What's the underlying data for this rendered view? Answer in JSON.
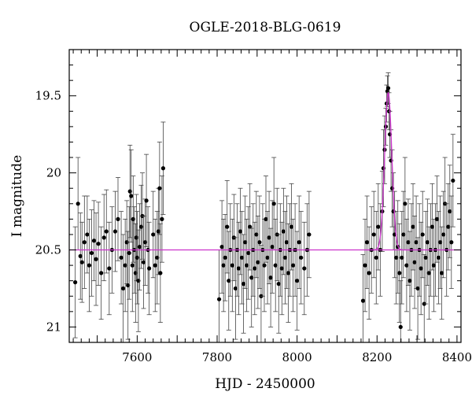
{
  "chart_data": {
    "type": "scatter",
    "title": "OGLE-2018-BLG-0619",
    "xlabel": "HJD - 2450000",
    "ylabel": "I magnitude",
    "xlim": [
      7430,
      8410
    ],
    "ylim": [
      21.1,
      19.2
    ],
    "y_inverted": true,
    "xticks": [
      7600,
      7800,
      8000,
      8200,
      8400
    ],
    "xtick_labels": [
      "7600",
      "7800",
      "8000",
      "8200",
      "8400"
    ],
    "yticks": [
      19.5,
      20,
      20.5,
      21
    ],
    "ytick_labels": [
      "19.5",
      "20",
      "20.5",
      "21"
    ],
    "baseline_mag": 20.5,
    "model": {
      "type": "microlensing-peak",
      "t0": 8228,
      "peak_mag": 19.48,
      "width_days": 9,
      "color": "#cc33cc"
    },
    "marker_color": "#000000",
    "series": [
      {
        "points": [
          {
            "x": 7445,
            "y": 20.71,
            "e": 0.36
          },
          {
            "x": 7452,
            "y": 20.2,
            "e": 0.3
          },
          {
            "x": 7458,
            "y": 20.54,
            "e": 0.28
          },
          {
            "x": 7462,
            "y": 20.58,
            "e": 0.26
          },
          {
            "x": 7468,
            "y": 20.45,
            "e": 0.3
          },
          {
            "x": 7475,
            "y": 20.4,
            "e": 0.25
          },
          {
            "x": 7480,
            "y": 20.6,
            "e": 0.3
          },
          {
            "x": 7486,
            "y": 20.52,
            "e": 0.28
          },
          {
            "x": 7492,
            "y": 20.44,
            "e": 0.26
          },
          {
            "x": 7497,
            "y": 20.56,
            "e": 0.3
          },
          {
            "x": 7503,
            "y": 20.46,
            "e": 0.27
          },
          {
            "x": 7510,
            "y": 20.65,
            "e": 0.3
          },
          {
            "x": 7517,
            "y": 20.42,
            "e": 0.28
          },
          {
            "x": 7523,
            "y": 20.38,
            "e": 0.27
          },
          {
            "x": 7530,
            "y": 20.62,
            "e": 0.3
          },
          {
            "x": 7537,
            "y": 20.5,
            "e": 0.28
          },
          {
            "x": 7545,
            "y": 20.38,
            "e": 0.26
          },
          {
            "x": 7552,
            "y": 20.3,
            "e": 0.27
          },
          {
            "x": 7560,
            "y": 20.55,
            "e": 0.3
          },
          {
            "x": 7565,
            "y": 20.75,
            "e": 0.35
          },
          {
            "x": 7570,
            "y": 20.6,
            "e": 0.3
          },
          {
            "x": 7574,
            "y": 20.45,
            "e": 0.27
          },
          {
            "x": 7577,
            "y": 20.73,
            "e": 0.35
          },
          {
            "x": 7580,
            "y": 20.52,
            "e": 0.3
          },
          {
            "x": 7582,
            "y": 20.12,
            "e": 0.3
          },
          {
            "x": 7585,
            "y": 20.15,
            "e": 0.3
          },
          {
            "x": 7588,
            "y": 20.6,
            "e": 0.3
          },
          {
            "x": 7590,
            "y": 20.3,
            "e": 0.28
          },
          {
            "x": 7593,
            "y": 20.5,
            "e": 0.28
          },
          {
            "x": 7596,
            "y": 20.65,
            "e": 0.32
          },
          {
            "x": 7598,
            "y": 20.42,
            "e": 0.28
          },
          {
            "x": 7600,
            "y": 20.55,
            "e": 0.3
          },
          {
            "x": 7603,
            "y": 20.7,
            "e": 0.33
          },
          {
            "x": 7606,
            "y": 20.48,
            "e": 0.28
          },
          {
            "x": 7610,
            "y": 20.35,
            "e": 0.27
          },
          {
            "x": 7613,
            "y": 20.28,
            "e": 0.28
          },
          {
            "x": 7616,
            "y": 20.58,
            "e": 0.3
          },
          {
            "x": 7620,
            "y": 20.45,
            "e": 0.28
          },
          {
            "x": 7623,
            "y": 20.18,
            "e": 0.3
          },
          {
            "x": 7627,
            "y": 20.5,
            "e": 0.28
          },
          {
            "x": 7630,
            "y": 20.62,
            "e": 0.3
          },
          {
            "x": 7640,
            "y": 20.4,
            "e": 0.28
          },
          {
            "x": 7645,
            "y": 20.6,
            "e": 0.3
          },
          {
            "x": 7650,
            "y": 20.55,
            "e": 0.3
          },
          {
            "x": 7653,
            "y": 20.38,
            "e": 0.28
          },
          {
            "x": 7656,
            "y": 20.1,
            "e": 0.3
          },
          {
            "x": 7658,
            "y": 20.65,
            "e": 0.32
          },
          {
            "x": 7662,
            "y": 20.3,
            "e": 0.28
          },
          {
            "x": 7665,
            "y": 19.97,
            "e": 0.3
          },
          {
            "x": 7805,
            "y": 20.82,
            "e": 0.32
          },
          {
            "x": 7812,
            "y": 20.48,
            "e": 0.3
          },
          {
            "x": 7816,
            "y": 20.6,
            "e": 0.3
          },
          {
            "x": 7820,
            "y": 20.55,
            "e": 0.28
          },
          {
            "x": 7825,
            "y": 20.35,
            "e": 0.3
          },
          {
            "x": 7829,
            "y": 20.7,
            "e": 0.32
          },
          {
            "x": 7833,
            "y": 20.5,
            "e": 0.3
          },
          {
            "x": 7838,
            "y": 20.6,
            "e": 0.3
          },
          {
            "x": 7842,
            "y": 20.42,
            "e": 0.28
          },
          {
            "x": 7846,
            "y": 20.75,
            "e": 0.33
          },
          {
            "x": 7850,
            "y": 20.5,
            "e": 0.3
          },
          {
            "x": 7854,
            "y": 20.62,
            "e": 0.3
          },
          {
            "x": 7858,
            "y": 20.38,
            "e": 0.28
          },
          {
            "x": 7862,
            "y": 20.55,
            "e": 0.3
          },
          {
            "x": 7866,
            "y": 20.72,
            "e": 0.32
          },
          {
            "x": 7870,
            "y": 20.45,
            "e": 0.3
          },
          {
            "x": 7874,
            "y": 20.6,
            "e": 0.3
          },
          {
            "x": 7878,
            "y": 20.52,
            "e": 0.3
          },
          {
            "x": 7882,
            "y": 20.35,
            "e": 0.28
          },
          {
            "x": 7886,
            "y": 20.68,
            "e": 0.32
          },
          {
            "x": 7890,
            "y": 20.5,
            "e": 0.3
          },
          {
            "x": 7894,
            "y": 20.62,
            "e": 0.3
          },
          {
            "x": 7898,
            "y": 20.4,
            "e": 0.28
          },
          {
            "x": 7902,
            "y": 20.58,
            "e": 0.3
          },
          {
            "x": 7906,
            "y": 20.45,
            "e": 0.3
          },
          {
            "x": 7910,
            "y": 20.8,
            "e": 0.33
          },
          {
            "x": 7914,
            "y": 20.5,
            "e": 0.3
          },
          {
            "x": 7918,
            "y": 20.6,
            "e": 0.3
          },
          {
            "x": 7922,
            "y": 20.3,
            "e": 0.28
          },
          {
            "x": 7926,
            "y": 20.55,
            "e": 0.3
          },
          {
            "x": 7930,
            "y": 20.42,
            "e": 0.3
          },
          {
            "x": 7934,
            "y": 20.68,
            "e": 0.32
          },
          {
            "x": 7938,
            "y": 20.48,
            "e": 0.3
          },
          {
            "x": 7942,
            "y": 20.2,
            "e": 0.3
          },
          {
            "x": 7946,
            "y": 20.6,
            "e": 0.3
          },
          {
            "x": 7950,
            "y": 20.4,
            "e": 0.3
          },
          {
            "x": 7954,
            "y": 20.72,
            "e": 0.32
          },
          {
            "x": 7958,
            "y": 20.5,
            "e": 0.3
          },
          {
            "x": 7962,
            "y": 20.62,
            "e": 0.3
          },
          {
            "x": 7966,
            "y": 20.38,
            "e": 0.28
          },
          {
            "x": 7970,
            "y": 20.55,
            "e": 0.3
          },
          {
            "x": 7974,
            "y": 20.45,
            "e": 0.3
          },
          {
            "x": 7978,
            "y": 20.65,
            "e": 0.32
          },
          {
            "x": 7982,
            "y": 20.5,
            "e": 0.3
          },
          {
            "x": 7986,
            "y": 20.35,
            "e": 0.28
          },
          {
            "x": 7990,
            "y": 20.6,
            "e": 0.3
          },
          {
            "x": 7995,
            "y": 20.5,
            "e": 0.3
          },
          {
            "x": 8000,
            "y": 20.7,
            "e": 0.32
          },
          {
            "x": 8005,
            "y": 20.45,
            "e": 0.3
          },
          {
            "x": 8010,
            "y": 20.55,
            "e": 0.3
          },
          {
            "x": 8018,
            "y": 20.62,
            "e": 0.3
          },
          {
            "x": 8025,
            "y": 20.5,
            "e": 0.3
          },
          {
            "x": 8030,
            "y": 20.4,
            "e": 0.28
          },
          {
            "x": 8165,
            "y": 20.83,
            "e": 0.3
          },
          {
            "x": 8170,
            "y": 20.6,
            "e": 0.3
          },
          {
            "x": 8175,
            "y": 20.45,
            "e": 0.3
          },
          {
            "x": 8180,
            "y": 20.65,
            "e": 0.3
          },
          {
            "x": 8186,
            "y": 20.5,
            "e": 0.28
          },
          {
            "x": 8192,
            "y": 20.4,
            "e": 0.28
          },
          {
            "x": 8198,
            "y": 20.55,
            "e": 0.3
          },
          {
            "x": 8203,
            "y": 20.35,
            "e": 0.28
          },
          {
            "x": 8208,
            "y": 20.5,
            "e": 0.3
          },
          {
            "x": 8213,
            "y": 20.25,
            "e": 0.26
          },
          {
            "x": 8216,
            "y": 19.97,
            "e": 0.25
          },
          {
            "x": 8219,
            "y": 19.85,
            "e": 0.22
          },
          {
            "x": 8222,
            "y": 19.7,
            "e": 0.12
          },
          {
            "x": 8224,
            "y": 19.55,
            "e": 0.12
          },
          {
            "x": 8226,
            "y": 19.47,
            "e": 0.1
          },
          {
            "x": 8228,
            "y": 19.45,
            "e": 0.1
          },
          {
            "x": 8230,
            "y": 19.6,
            "e": 0.12
          },
          {
            "x": 8232,
            "y": 19.75,
            "e": 0.15
          },
          {
            "x": 8235,
            "y": 19.92,
            "e": 0.2
          },
          {
            "x": 8238,
            "y": 20.1,
            "e": 0.25
          },
          {
            "x": 8241,
            "y": 20.25,
            "e": 0.25
          },
          {
            "x": 8244,
            "y": 20.4,
            "e": 0.28
          },
          {
            "x": 8248,
            "y": 20.55,
            "e": 0.3
          },
          {
            "x": 8252,
            "y": 20.48,
            "e": 0.3
          },
          {
            "x": 8256,
            "y": 20.65,
            "e": 0.32
          },
          {
            "x": 8259,
            "y": 21.0,
            "e": 0.3
          },
          {
            "x": 8262,
            "y": 20.55,
            "e": 0.3
          },
          {
            "x": 8266,
            "y": 20.4,
            "e": 0.28
          },
          {
            "x": 8270,
            "y": 20.2,
            "e": 0.3
          },
          {
            "x": 8274,
            "y": 20.6,
            "e": 0.3
          },
          {
            "x": 8278,
            "y": 20.45,
            "e": 0.28
          },
          {
            "x": 8282,
            "y": 20.7,
            "e": 0.32
          },
          {
            "x": 8286,
            "y": 20.5,
            "e": 0.3
          },
          {
            "x": 8290,
            "y": 20.35,
            "e": 0.28
          },
          {
            "x": 8294,
            "y": 20.58,
            "e": 0.3
          },
          {
            "x": 8298,
            "y": 20.45,
            "e": 0.3
          },
          {
            "x": 8302,
            "y": 20.75,
            "e": 0.33
          },
          {
            "x": 8306,
            "y": 20.5,
            "e": 0.3
          },
          {
            "x": 8310,
            "y": 20.62,
            "e": 0.3
          },
          {
            "x": 8314,
            "y": 20.4,
            "e": 0.28
          },
          {
            "x": 8318,
            "y": 20.85,
            "e": 0.32
          },
          {
            "x": 8322,
            "y": 20.55,
            "e": 0.3
          },
          {
            "x": 8326,
            "y": 20.45,
            "e": 0.28
          },
          {
            "x": 8330,
            "y": 20.65,
            "e": 0.3
          },
          {
            "x": 8334,
            "y": 20.5,
            "e": 0.3
          },
          {
            "x": 8338,
            "y": 20.35,
            "e": 0.28
          },
          {
            "x": 8342,
            "y": 20.6,
            "e": 0.3
          },
          {
            "x": 8346,
            "y": 20.5,
            "e": 0.3
          },
          {
            "x": 8350,
            "y": 20.3,
            "e": 0.28
          },
          {
            "x": 8354,
            "y": 20.55,
            "e": 0.3
          },
          {
            "x": 8358,
            "y": 20.45,
            "e": 0.3
          },
          {
            "x": 8362,
            "y": 20.65,
            "e": 0.3
          },
          {
            "x": 8366,
            "y": 20.4,
            "e": 0.28
          },
          {
            "x": 8370,
            "y": 20.2,
            "e": 0.3
          },
          {
            "x": 8374,
            "y": 20.5,
            "e": 0.3
          },
          {
            "x": 8378,
            "y": 20.35,
            "e": 0.28
          },
          {
            "x": 8382,
            "y": 20.25,
            "e": 0.3
          },
          {
            "x": 8386,
            "y": 20.45,
            "e": 0.3
          },
          {
            "x": 8390,
            "y": 20.05,
            "e": 0.3
          }
        ]
      }
    ]
  }
}
